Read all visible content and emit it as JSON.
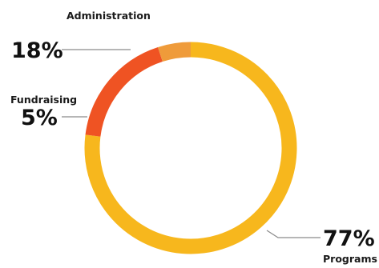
{
  "chart_data": {
    "type": "pie",
    "style": "donut",
    "categories": [
      "Programs",
      "Administration",
      "Fundraising"
    ],
    "values": [
      77,
      18,
      5
    ],
    "value_labels": [
      "77%",
      "18%",
      "5%"
    ],
    "colors": [
      "#F7B71D",
      "#EF5323",
      "#EF9B3A"
    ]
  }
}
